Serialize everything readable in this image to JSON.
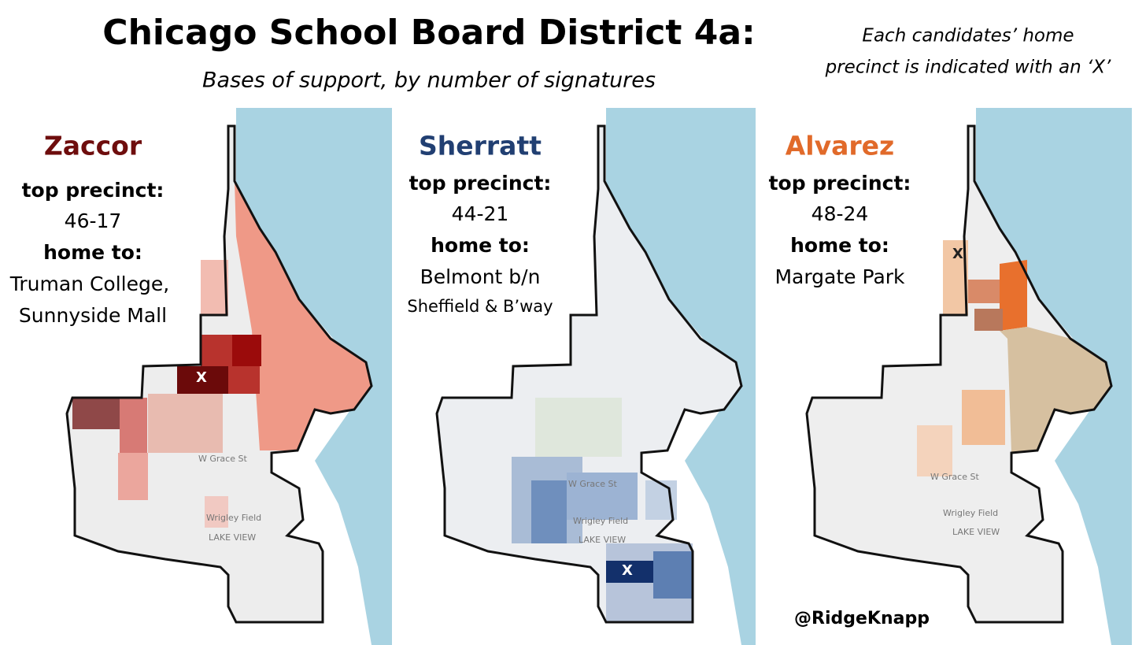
{
  "header": {
    "title": "Chicago School Board District 4a:",
    "subtitle": "Bases of support, by number of signatures",
    "note": [
      "Each candidates’ home",
      "precinct is indicated with an ‘X’"
    ]
  },
  "panels": [
    {
      "name": "Zaccor",
      "top_label": "top precinct:",
      "top_precinct": "46-17",
      "home_label": "home to:",
      "home_to": [
        "Truman College,",
        "Sunnyside Mall"
      ]
    },
    {
      "name": "Sherratt",
      "top_label": "top precinct:",
      "top_precinct": "44-21",
      "home_label": "home to:",
      "home_to": [
        "Belmont b/n",
        "Sheffield & B’way"
      ]
    },
    {
      "name": "Alvarez",
      "top_label": "top precinct:",
      "top_precinct": "48-24",
      "home_label": "home to:",
      "home_to": [
        "Margate Park"
      ]
    }
  ],
  "map_labels": {
    "street": "W Grace St",
    "landmark": "Wrigley Field",
    "area": "LAKE VIEW"
  },
  "marker": "X",
  "credit": "@RidgeKnapp"
}
